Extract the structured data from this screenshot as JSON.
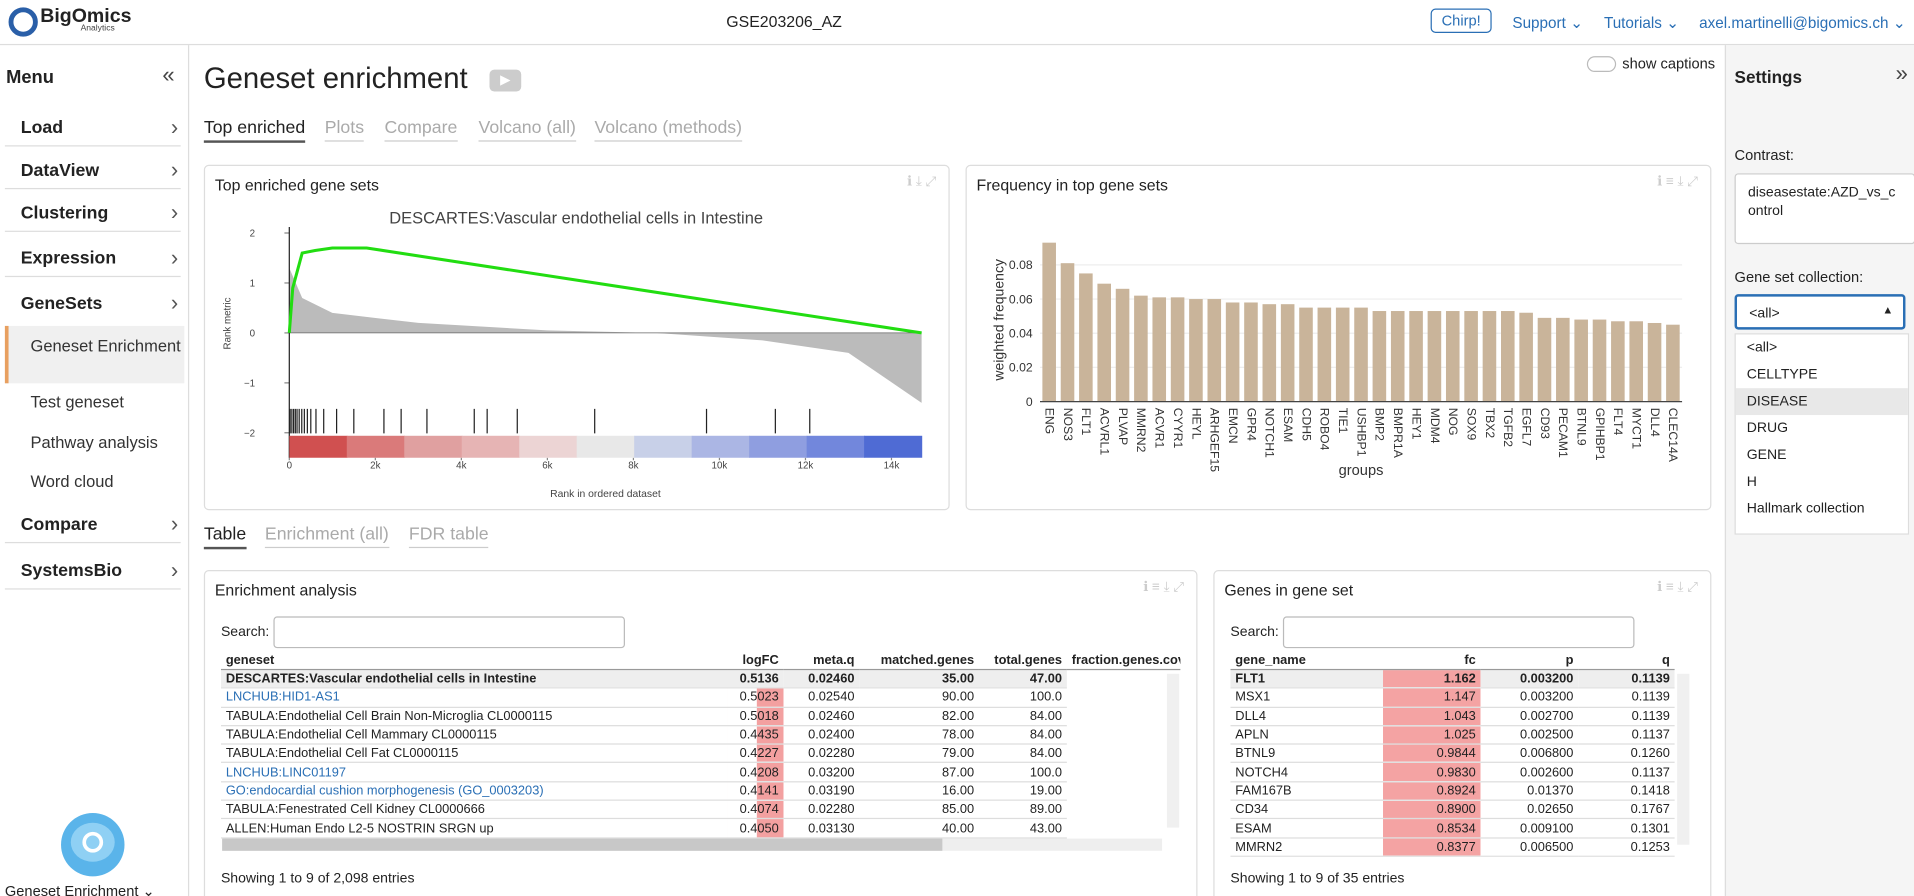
{
  "header": {
    "logo": "BigOmics",
    "logo_sub": "Analytics",
    "dataset": "GSE203206_AZ",
    "chirp": "Chirp!",
    "support": "Support",
    "tutorials": "Tutorials",
    "user": "axel.martinelli@bigomics.ch"
  },
  "menu": {
    "title": "Menu",
    "items": [
      "Load",
      "DataView",
      "Clustering",
      "Expression",
      "GeneSets",
      "Compare",
      "SystemsBio"
    ],
    "subitems": [
      "Geneset Enrichment",
      "Test geneset",
      "Pathway analysis",
      "Word cloud"
    ],
    "footer": "Geneset Enrichment"
  },
  "page": {
    "title": "Geneset enrichment",
    "show_captions": "show captions",
    "tabs": [
      "Top enriched",
      "Plots",
      "Compare",
      "Volcano (all)",
      "Volcano (methods)"
    ],
    "bottom_tabs": [
      "Table",
      "Enrichment (all)",
      "FDR table"
    ]
  },
  "settings": {
    "title": "Settings",
    "contrast_label": "Contrast:",
    "contrast": "diseasestate:AZD_vs_control",
    "collection_label": "Gene set collection:",
    "collection": "<all>",
    "options": [
      "<all>",
      "CELLTYPE",
      "DISEASE",
      "DRUG",
      "GENE",
      "H",
      "Hallmark collection"
    ]
  },
  "panels": {
    "top_enriched": "Top enriched gene sets",
    "frequency": "Frequency in top gene sets",
    "enrichment": "Enrichment analysis",
    "genes": "Genes in gene set"
  },
  "enrichment_table": {
    "search": "Search:",
    "columns": [
      "geneset",
      "logFC",
      "meta.q",
      "matched.genes",
      "total.genes",
      "fraction.genes.covered"
    ],
    "rows": [
      [
        "DESCARTES:Vascular endothelial cells in Intestine",
        "0.5136",
        "0.02460",
        "35.00",
        "47.00"
      ],
      [
        "LNCHUB:HID1-AS1",
        "0.5023",
        "0.02540",
        "90.00",
        "100.0"
      ],
      [
        "TABULA:Endothelial Cell Brain Non-Microglia CL0000115",
        "0.5018",
        "0.02460",
        "82.00",
        "84.00"
      ],
      [
        "TABULA:Endothelial Cell Mammary CL0000115",
        "0.4435",
        "0.02400",
        "78.00",
        "84.00"
      ],
      [
        "TABULA:Endothelial Cell Fat CL0000115",
        "0.4227",
        "0.02280",
        "79.00",
        "84.00"
      ],
      [
        "LNCHUB:LINC01197",
        "0.4208",
        "0.03200",
        "87.00",
        "100.0"
      ],
      [
        "GO:endocardial cushion morphogenesis (GO_0003203)",
        "0.4141",
        "0.03190",
        "16.00",
        "19.00"
      ],
      [
        "TABULA:Fenestrated Cell Kidney CL0000666",
        "0.4074",
        "0.02280",
        "85.00",
        "89.00"
      ],
      [
        "ALLEN:Human Endo L2-5 NOSTRIN SRGN up",
        "0.4050",
        "0.03130",
        "40.00",
        "43.00"
      ]
    ],
    "footer": "Showing 1 to 9 of 2,098 entries"
  },
  "genes_table": {
    "search": "Search:",
    "columns": [
      "gene_name",
      "fc",
      "p",
      "q"
    ],
    "rows": [
      [
        "FLT1",
        "1.162",
        "0.003200",
        "0.1139"
      ],
      [
        "MSX1",
        "1.147",
        "0.003200",
        "0.1139"
      ],
      [
        "DLL4",
        "1.043",
        "0.002700",
        "0.1139"
      ],
      [
        "APLN",
        "1.025",
        "0.002500",
        "0.1137"
      ],
      [
        "BTNL9",
        "0.9844",
        "0.006800",
        "0.1260"
      ],
      [
        "NOTCH4",
        "0.9830",
        "0.002600",
        "0.1137"
      ],
      [
        "FAM167B",
        "0.8924",
        "0.01370",
        "0.1418"
      ],
      [
        "CD34",
        "0.8900",
        "0.02650",
        "0.1767"
      ],
      [
        "ESAM",
        "0.8534",
        "0.009100",
        "0.1301"
      ],
      [
        "MMRN2",
        "0.8377",
        "0.006500",
        "0.1253"
      ]
    ],
    "footer": "Showing 1 to 9 of 35 entries"
  },
  "chart_data": [
    {
      "type": "gsea",
      "title": "DESCARTES:Vascular endothelial cells in Intestine",
      "xlabel": "Rank in ordered dataset",
      "ylabel": "Rank metric",
      "xlim": [
        0,
        14700
      ],
      "xticks": [
        0,
        {
          "value": 2000,
          "label": "2k"
        },
        {
          "value": 4000,
          "label": "4k"
        },
        {
          "value": 6000,
          "label": "6k"
        },
        {
          "value": 8000,
          "label": "8k"
        },
        {
          "value": 10000,
          "label": "10k"
        },
        {
          "value": 12000,
          "label": "12k"
        },
        {
          "value": 14000,
          "label": "14k"
        }
      ],
      "ylim": [
        -2.5,
        2.12
      ],
      "yticks": [
        {
          "value": -2,
          "label": "−2"
        },
        {
          "value": -1,
          "label": "−1"
        },
        0,
        1,
        2
      ],
      "metric": {
        "color": "#bbbbbb",
        "x": [
          0,
          300,
          1000,
          3000,
          6000,
          8500,
          11000,
          13000,
          14700
        ],
        "values": [
          1.3,
          0.7,
          0.4,
          0.2,
          0.05,
          0,
          -0.15,
          -0.4,
          -1.4
        ]
      },
      "series": [
        {
          "color": "#22dd11",
          "x": [
            0,
            80,
            300,
            600,
            1000,
            1800,
            14700
          ],
          "values": [
            0,
            0.9,
            1.6,
            1.65,
            1.7,
            1.7,
            0
          ]
        }
      ],
      "hits": [
        20,
        60,
        100,
        140,
        180,
        230,
        290,
        350,
        420,
        500,
        620,
        800,
        1100,
        1500,
        2200,
        2600,
        3200,
        4300,
        4600,
        5300,
        7100,
        9700,
        11300,
        12100
      ]
    },
    {
      "type": "bar",
      "xlabel": "groups",
      "ylabel": "weighted frequency",
      "color": "#c9b49a",
      "grid": true,
      "categories": [
        "ENG",
        "NOS3",
        "FLT1",
        "ACVRL1",
        "PLVAP",
        "MMRN2",
        "ACVR1",
        "CYYR1",
        "HEYL",
        "ARHGEF15",
        "EMCN",
        "GPR4",
        "NOTCH1",
        "ESAM",
        "CDH5",
        "ROBO4",
        "TIE1",
        "USHBP1",
        "BMP2",
        "BMPR1A",
        "HEY1",
        "MDM4",
        "NOG",
        "SOX9",
        "TBX2",
        "TGFB2",
        "EGFL7",
        "CD93",
        "PECAM1",
        "BTNL9",
        "GPIHBP1",
        "FLT4",
        "MYCT1",
        "DLL4",
        "CLEC14A"
      ],
      "values": [
        0.093,
        0.081,
        0.075,
        0.069,
        0.066,
        0.062,
        0.061,
        0.061,
        0.06,
        0.06,
        0.058,
        0.058,
        0.057,
        0.057,
        0.055,
        0.055,
        0.055,
        0.055,
        0.053,
        0.053,
        0.053,
        0.053,
        0.053,
        0.053,
        0.053,
        0.053,
        0.052,
        0.049,
        0.049,
        0.048,
        0.048,
        0.047,
        0.047,
        0.046,
        0.045
      ],
      "ylim": [
        0,
        0.095
      ],
      "yticks": [
        0,
        0.02,
        0.04,
        0.06,
        0.08
      ]
    }
  ]
}
